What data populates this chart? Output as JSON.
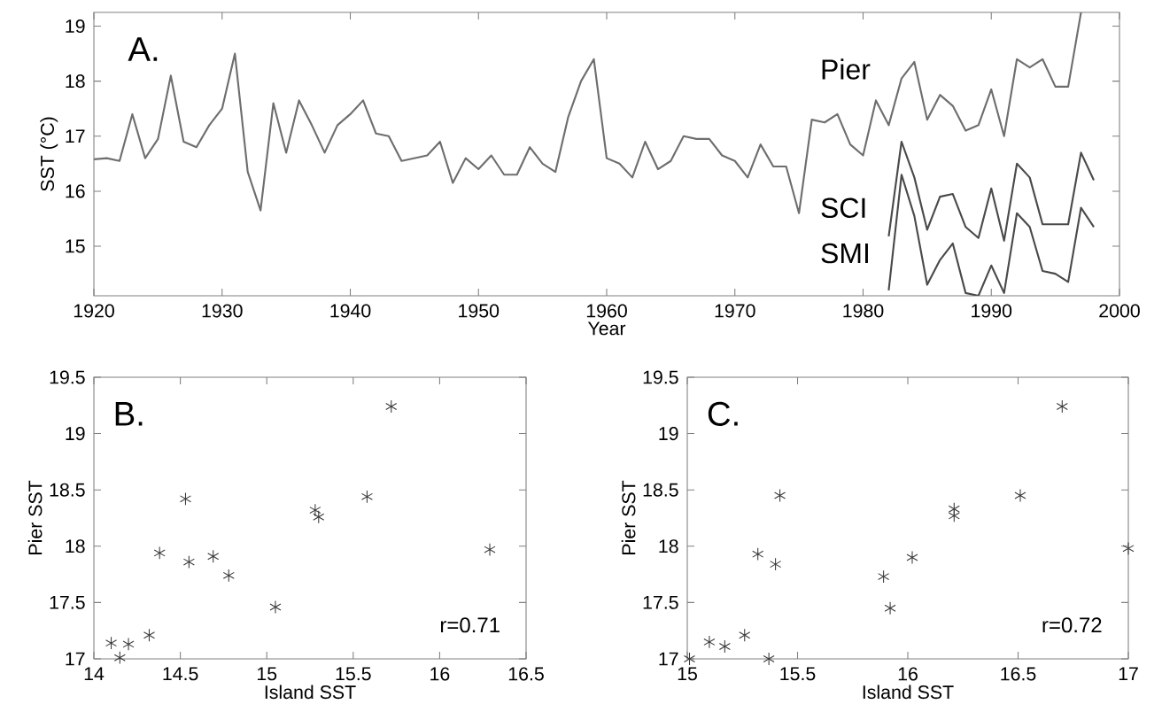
{
  "chart_data": [
    {
      "type": "line",
      "xlabel": "Year",
      "ylabel": "SST (°C)",
      "annotations": [
        "A."
      ],
      "xlim": [
        1920,
        2000
      ],
      "ylim": [
        14.1,
        19.25
      ],
      "xticks": [
        1920,
        1930,
        1940,
        1950,
        1960,
        1970,
        1980,
        1990,
        2000
      ],
      "yticks": [
        15,
        16,
        17,
        18,
        19
      ],
      "series": [
        {
          "name": "Pier",
          "color": "#6e6e6e",
          "x": [
            1920,
            1921,
            1922,
            1923,
            1924,
            1925,
            1926,
            1927,
            1928,
            1929,
            1930,
            1931,
            1932,
            1933,
            1934,
            1935,
            1936,
            1937,
            1938,
            1939,
            1940,
            1941,
            1942,
            1943,
            1944,
            1945,
            1946,
            1947,
            1948,
            1949,
            1950,
            1951,
            1952,
            1953,
            1954,
            1955,
            1956,
            1957,
            1958,
            1959,
            1960,
            1961,
            1962,
            1963,
            1964,
            1965,
            1966,
            1967,
            1968,
            1969,
            1970,
            1971,
            1972,
            1973,
            1974,
            1975,
            1976,
            1977,
            1978,
            1979,
            1980,
            1981,
            1982,
            1983,
            1984,
            1985,
            1986,
            1987,
            1988,
            1989,
            1990,
            1991,
            1992,
            1993,
            1994,
            1995,
            1996,
            1997
          ],
          "values": [
            16.58,
            16.6,
            16.55,
            17.4,
            16.6,
            16.95,
            18.1,
            16.9,
            16.8,
            17.2,
            17.5,
            18.5,
            16.35,
            15.65,
            17.6,
            16.7,
            17.65,
            17.2,
            16.7,
            17.2,
            17.4,
            17.65,
            17.05,
            17.0,
            16.55,
            16.6,
            16.65,
            16.9,
            16.15,
            16.6,
            16.4,
            16.65,
            16.3,
            16.3,
            16.8,
            16.5,
            16.35,
            17.35,
            18.0,
            18.4,
            16.6,
            16.5,
            16.25,
            16.9,
            16.4,
            16.55,
            17.0,
            16.95,
            16.95,
            16.65,
            16.55,
            16.25,
            16.85,
            16.45,
            16.45,
            15.6,
            17.3,
            17.25,
            17.4,
            16.85,
            16.65,
            17.65,
            17.2,
            18.05,
            18.35,
            17.3,
            17.75,
            17.55,
            17.1,
            17.2,
            17.85,
            17.0,
            18.4,
            18.25,
            18.4,
            17.9,
            17.9,
            19.25
          ]
        },
        {
          "name": "SCI",
          "color": "#4a4a4a",
          "x": [
            1982,
            1983,
            1984,
            1985,
            1986,
            1987,
            1988,
            1989,
            1990,
            1991,
            1992,
            1993,
            1994,
            1995,
            1996,
            1997,
            1998
          ],
          "values": [
            15.18,
            16.9,
            16.25,
            15.3,
            15.9,
            15.95,
            15.35,
            15.15,
            16.05,
            15.1,
            16.5,
            16.25,
            15.4,
            15.4,
            15.4,
            16.7,
            16.2
          ]
        },
        {
          "name": "SMI",
          "color": "#4a4a4a",
          "x": [
            1982,
            1983,
            1984,
            1985,
            1986,
            1987,
            1988,
            1989,
            1990,
            1991,
            1992,
            1993,
            1994,
            1995,
            1996,
            1997,
            1998
          ],
          "values": [
            14.2,
            16.3,
            15.55,
            14.3,
            14.75,
            15.05,
            14.15,
            14.1,
            14.65,
            14.15,
            15.6,
            15.35,
            14.55,
            14.5,
            14.35,
            15.7,
            15.35
          ]
        }
      ]
    },
    {
      "type": "scatter",
      "xlabel": "Island SST",
      "ylabel": "Pier SST",
      "annotations": [
        "B.",
        "r=0.71"
      ],
      "marker": "cross",
      "color": "#3a3a3a",
      "xlim": [
        14,
        16.5
      ],
      "ylim": [
        17,
        19.5
      ],
      "xticks": [
        14,
        14.5,
        15,
        15.5,
        16,
        16.5
      ],
      "yticks": [
        17,
        17.5,
        18,
        18.5,
        19,
        19.5
      ],
      "x": [
        14.1,
        14.15,
        14.2,
        14.32,
        14.38,
        14.53,
        14.55,
        14.69,
        14.78,
        15.05,
        15.28,
        15.3,
        15.58,
        15.72,
        16.29
      ],
      "values": [
        17.14,
        17.01,
        17.13,
        17.21,
        17.94,
        18.42,
        17.86,
        17.91,
        17.74,
        17.46,
        18.32,
        18.26,
        18.44,
        19.24,
        17.97
      ]
    },
    {
      "type": "scatter",
      "xlabel": "Island SST",
      "ylabel": "Pier SST",
      "annotations": [
        "C.",
        "r=0.72"
      ],
      "marker": "cross",
      "color": "#3a3a3a",
      "xlim": [
        15,
        17
      ],
      "ylim": [
        17,
        19.5
      ],
      "xticks": [
        15,
        15.5,
        16,
        16.5,
        17
      ],
      "yticks": [
        17,
        17.5,
        18,
        18.5,
        19,
        19.5
      ],
      "x": [
        15.01,
        15.1,
        15.17,
        15.26,
        15.32,
        15.37,
        15.4,
        15.42,
        15.89,
        15.92,
        16.02,
        16.21,
        16.21,
        16.51,
        16.7,
        17.0
      ],
      "values": [
        17.0,
        17.15,
        17.11,
        17.21,
        17.93,
        17.0,
        17.84,
        18.45,
        17.73,
        17.45,
        17.9,
        18.33,
        18.27,
        18.45,
        19.24,
        17.98
      ]
    }
  ]
}
